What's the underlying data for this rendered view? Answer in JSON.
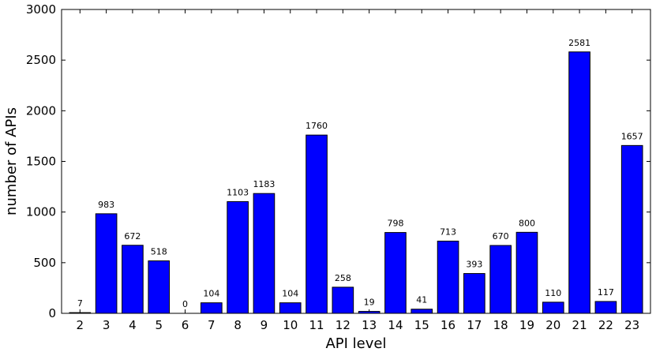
{
  "chart_data": {
    "type": "bar",
    "title": "",
    "xlabel": "API level",
    "ylabel": "number of APIs",
    "categories": [
      "2",
      "3",
      "4",
      "5",
      "6",
      "7",
      "8",
      "9",
      "10",
      "11",
      "12",
      "13",
      "14",
      "15",
      "16",
      "17",
      "18",
      "19",
      "20",
      "21",
      "22",
      "23"
    ],
    "values": [
      7,
      983,
      672,
      518,
      0,
      104,
      1103,
      1183,
      104,
      1760,
      258,
      19,
      798,
      41,
      713,
      393,
      670,
      800,
      110,
      2581,
      117,
      1657
    ],
    "ylim": [
      0,
      3000
    ],
    "yticks": [
      0,
      500,
      1000,
      1500,
      2000,
      2500,
      3000
    ],
    "grid": false,
    "bar_color": "#0000ff"
  }
}
